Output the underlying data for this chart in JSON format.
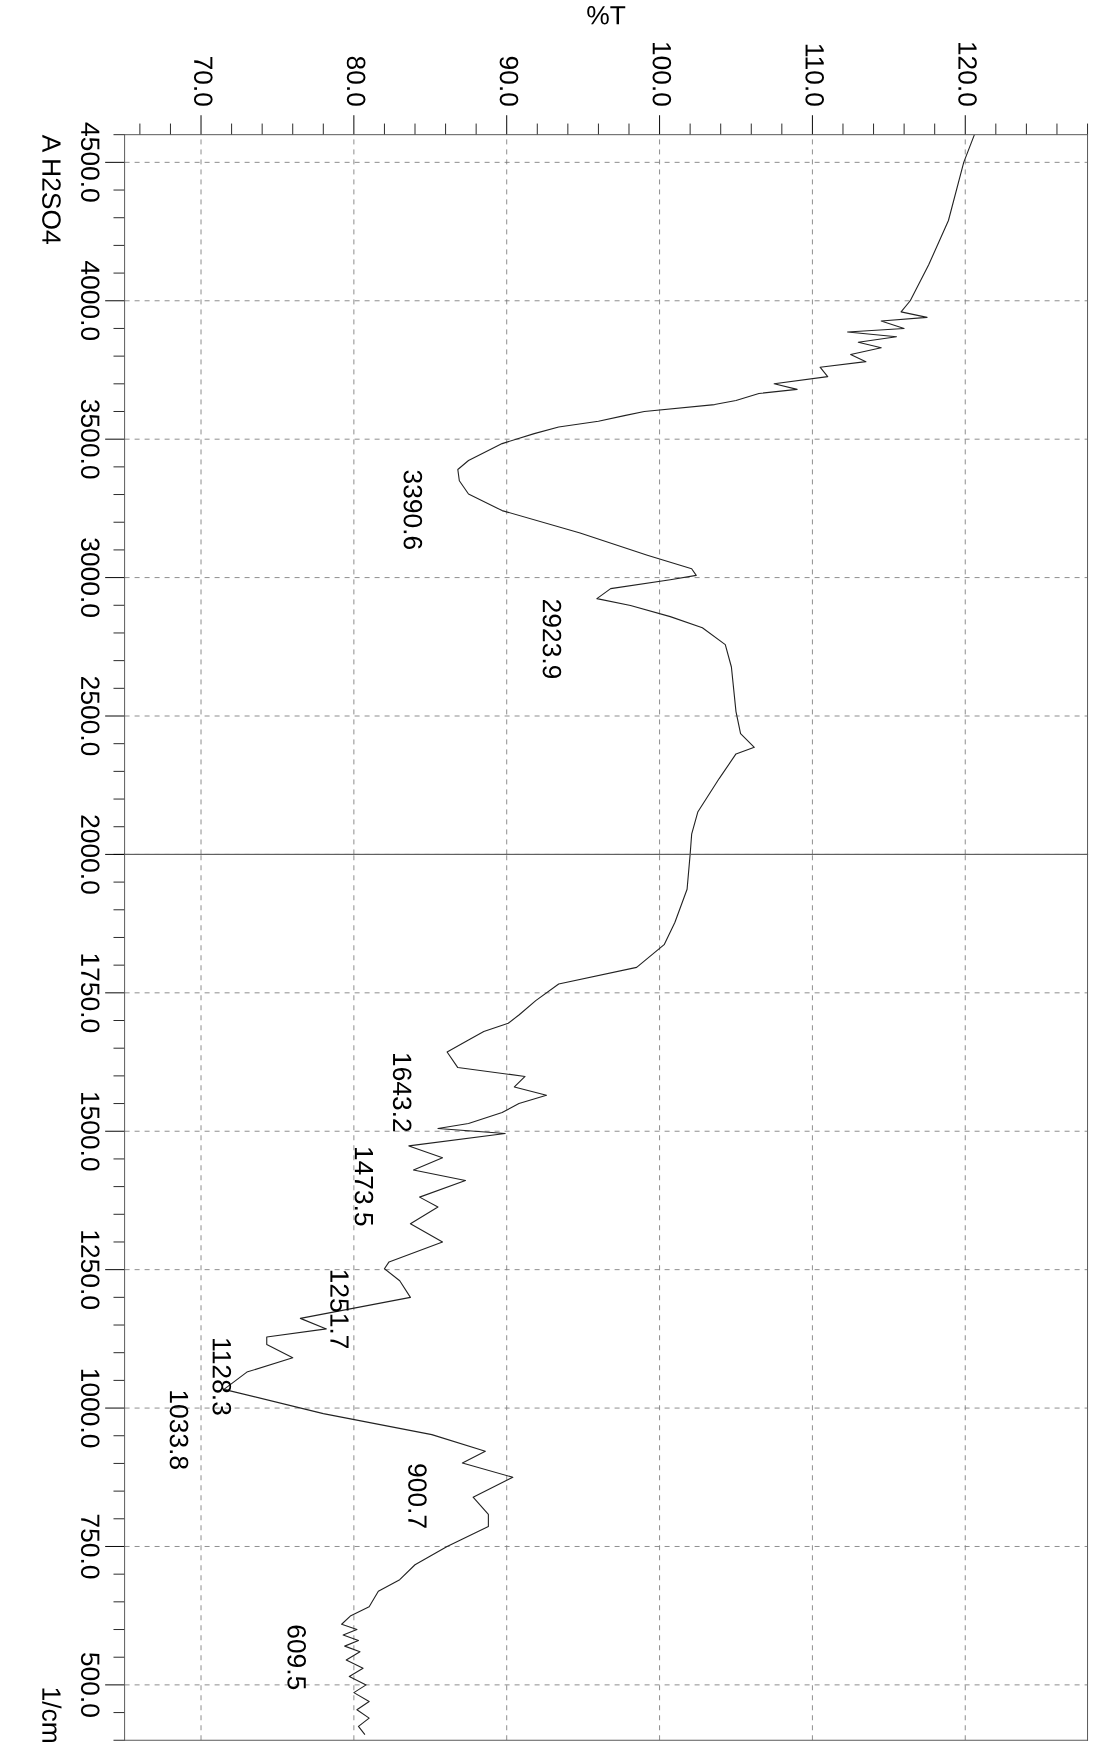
{
  "chart_data": [
    {
      "type": "line",
      "title": "A H2SO4",
      "xlabel": "%T",
      "series": [
        {
          "color": "#222222",
          "values": [
            4600,
            4500,
            4290,
            4129,
            4000,
            3960,
            3940,
            3927,
            3900,
            3887,
            3870,
            3850,
            3830,
            3806,
            3780,
            3760,
            3726,
            3700,
            3680,
            3665,
            3640,
            3625,
            3600,
            3585,
            3565,
            3544,
            3520,
            3484,
            3423,
            3390.6,
            3350,
            3302,
            3242,
            3161,
            3081,
            3032,
            3008,
            2992,
            2960,
            2923.9,
            2899,
            2859,
            2819,
            2758,
            2677,
            2516,
            2436,
            2387,
            2363,
            2274,
            2153,
            2073,
            2000
          ],
          "x": [
            120.6,
            119.9,
            118.9,
            117.6,
            116.4,
            115.8,
            117.5,
            114.5,
            116.0,
            112.3,
            115.5,
            113.0,
            114.5,
            112.5,
            113.5,
            110.5,
            111.0,
            107.5,
            109.0,
            106.5,
            105.0,
            103.6,
            99.0,
            97.7,
            96.0,
            93.4,
            91.8,
            89.7,
            87.5,
            86.8,
            86.9,
            87.5,
            89.7,
            94.8,
            99.2,
            102.1,
            102.4,
            100.7,
            96.8,
            95.9,
            98.1,
            100.7,
            102.8,
            104.3,
            104.7,
            105.0,
            105.3,
            106.2,
            105.0,
            103.9,
            102.5,
            102.1,
            102.0
          ]
        }
      ],
      "ylim": [
        2000,
        4600
      ],
      "yticks": [
        {
          "value": 4500,
          "label": "4500.0"
        },
        {
          "value": 4000,
          "label": "4000.0"
        },
        {
          "value": 3500,
          "label": "3500.0"
        },
        {
          "value": 3000,
          "label": "3000.0"
        },
        {
          "value": 2500,
          "label": "2500.0"
        },
        {
          "value": 2000,
          "label": "2000.0"
        }
      ],
      "xlim": [
        65,
        128
      ],
      "xticks": [
        {
          "value": 70,
          "label": "70.0"
        },
        {
          "value": 80,
          "label": "80.0"
        },
        {
          "value": 90,
          "label": "90.0"
        },
        {
          "value": 100,
          "label": "100.0"
        },
        {
          "value": 110,
          "label": "110.0"
        },
        {
          "value": 120,
          "label": "120.0"
        }
      ],
      "grid": true,
      "annotations": [
        {
          "text": "3390.6",
          "y": 3390.6,
          "x": 86.8
        },
        {
          "text": "2923.9",
          "y": 2923.9,
          "x": 95.9
        }
      ]
    },
    {
      "type": "line",
      "ylabel": "1/cm",
      "series": [
        {
          "color": "#222222",
          "values": [
            2000,
            1937,
            1877,
            1837,
            1796,
            1766,
            1736,
            1710,
            1695,
            1680,
            1665,
            1643.2,
            1615,
            1599,
            1580,
            1565,
            1550,
            1534,
            1514,
            1505,
            1496,
            1473.5,
            1452,
            1430,
            1411,
            1381,
            1363,
            1333,
            1300,
            1264,
            1251.7,
            1230,
            1200,
            1162,
            1143,
            1128.3,
            1115,
            1091,
            1065,
            1033.8,
            990,
            952,
            922,
            900.7,
            875,
            839,
            808,
            786,
            750,
            717,
            690,
            669,
            641,
            625,
            609.5,
            600,
            590,
            580,
            570,
            560,
            545,
            530,
            515,
            500,
            486,
            470,
            455,
            440,
            425,
            411
          ],
          "x": [
            102.0,
            101.8,
            101.0,
            100.3,
            98.5,
            93.4,
            91.9,
            90.8,
            90.1,
            88.5,
            87.5,
            86.1,
            86.8,
            91.2,
            90.5,
            92.6,
            90.8,
            89.7,
            87.5,
            85.5,
            89.9,
            83.6,
            85.8,
            83.9,
            87.3,
            84.3,
            85.5,
            83.7,
            85.8,
            82.3,
            82.0,
            83.0,
            83.7,
            76.5,
            78.2,
            74.3,
            74.3,
            76.0,
            73.0,
            71.5,
            78.0,
            85.1,
            88.6,
            87.1,
            90.4,
            87.8,
            88.8,
            88.8,
            86.1,
            84.0,
            83.0,
            81.6,
            81.0,
            79.8,
            79.2,
            80.2,
            79.3,
            80.3,
            79.4,
            80.4,
            79.5,
            80.6,
            79.7,
            80.8,
            80.0,
            81.0,
            80.2,
            81.0,
            80.3,
            80.7
          ]
        }
      ],
      "ylim": [
        400,
        2000
      ],
      "yticks": [
        {
          "value": 1750,
          "label": "1750.0"
        },
        {
          "value": 1500,
          "label": "1500.0"
        },
        {
          "value": 1250,
          "label": "1250.0"
        },
        {
          "value": 1000,
          "label": "1000.0"
        },
        {
          "value": 750,
          "label": "750.0"
        },
        {
          "value": 500,
          "label": "500.0"
        }
      ],
      "xlim": [
        65,
        128
      ],
      "xticks": [
        70,
        80,
        90,
        100,
        110,
        120
      ],
      "tick_labels": "y",
      "grid": true,
      "annotations": [
        {
          "text": "1643.2",
          "y": 1643.2,
          "x": 86.1
        },
        {
          "text": "1473.5",
          "y": 1473.5,
          "x": 83.6
        },
        {
          "text": "1251.7",
          "y": 1251.7,
          "x": 82.0
        },
        {
          "text": "1128.3",
          "y": 1128.3,
          "x": 74.3
        },
        {
          "text": "1033.8",
          "y": 1033.8,
          "x": 71.5
        },
        {
          "text": "900.7",
          "y": 900.7,
          "x": 87.1
        },
        {
          "text": "609.5",
          "y": 609.5,
          "x": 79.2
        }
      ]
    }
  ]
}
